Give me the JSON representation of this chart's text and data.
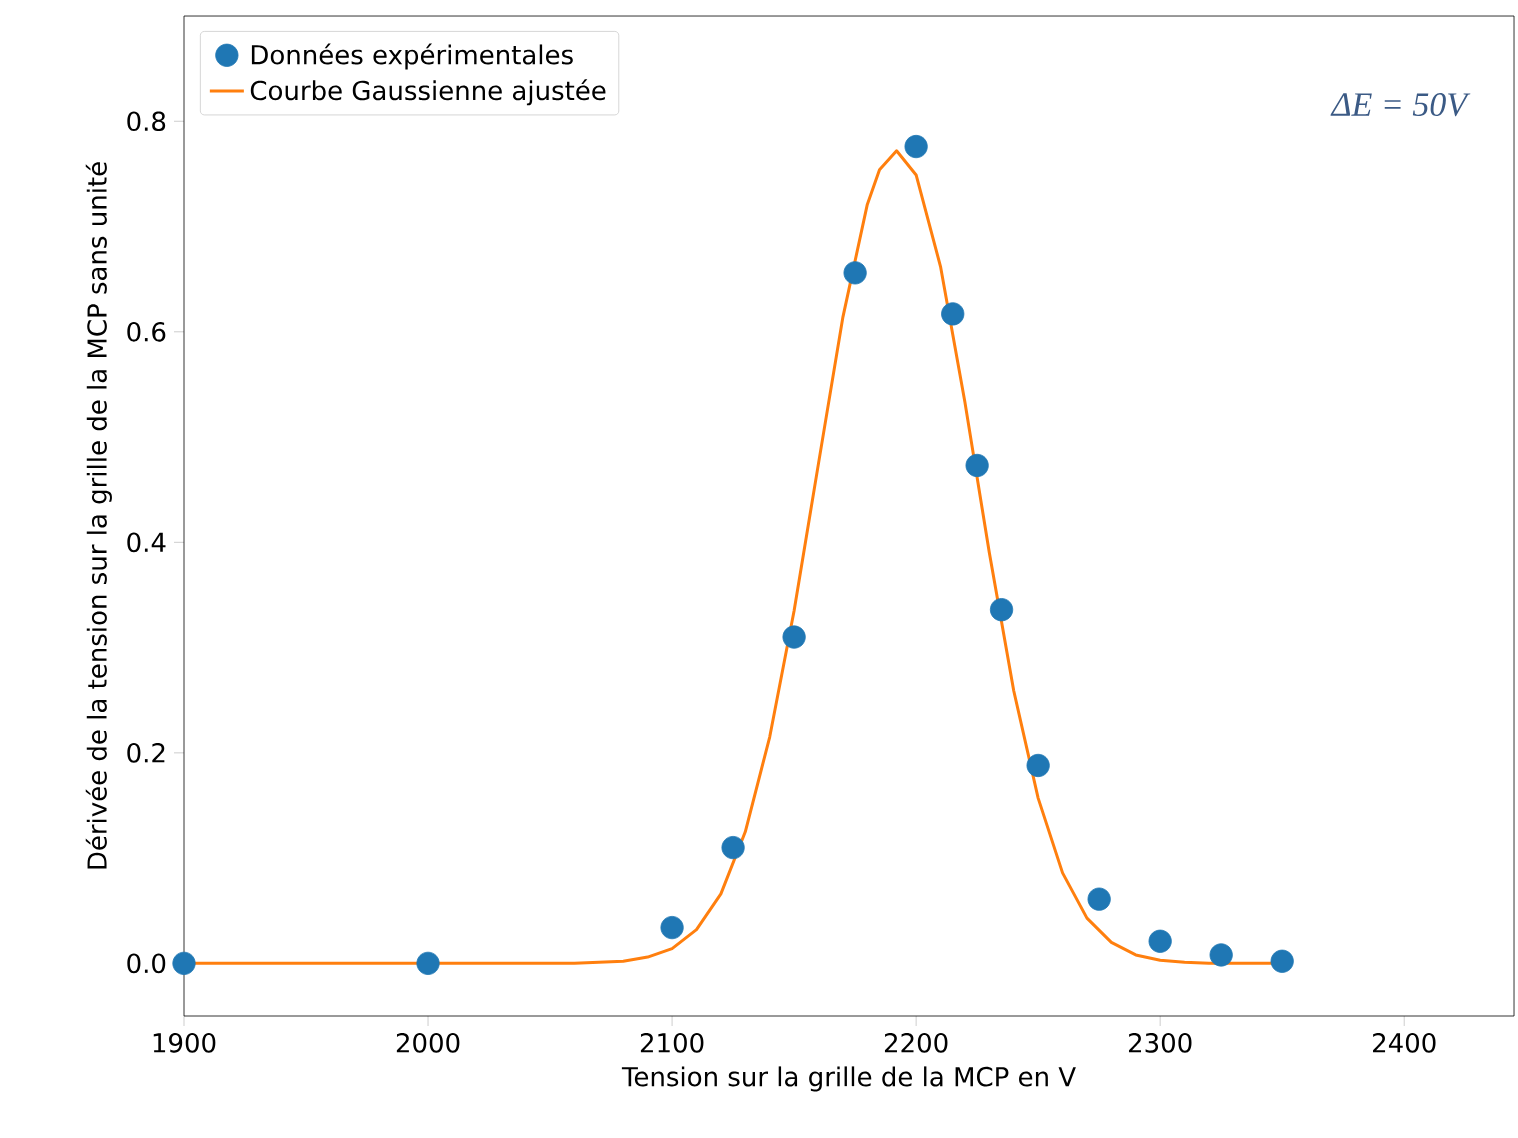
{
  "chart_data": {
    "type": "scatter",
    "xlabel": "Tension sur la grille de la MCP en V",
    "ylabel": "Dérivée de la tension sur la grille de la MCP sans unité",
    "xlim": [
      1900,
      2445
    ],
    "ylim": [
      -0.05,
      0.9
    ],
    "xticks": [
      1900,
      2000,
      2100,
      2200,
      2300,
      2400
    ],
    "yticks": [
      {
        "value": 0,
        "label": "0.0"
      },
      {
        "value": 0.2,
        "label": "0.2"
      },
      {
        "value": 0.4,
        "label": "0.4"
      },
      {
        "value": 0.6,
        "label": "0.6"
      },
      {
        "value": 0.8,
        "label": "0.8"
      }
    ],
    "legend": "top left",
    "annotations": [
      "ΔE = 50V"
    ],
    "series": [
      {
        "name": "Données expérimentales",
        "marker": "circle",
        "color": "#1f77b4",
        "x": [
          1900,
          2000,
          2100,
          2125,
          2150,
          2175,
          2200,
          2215,
          2225,
          2235,
          2250,
          2275,
          2300,
          2325,
          2350
        ],
        "values": [
          0.0,
          0.0,
          0.034,
          0.11,
          0.31,
          0.656,
          0.776,
          0.617,
          0.473,
          0.336,
          0.188,
          0.061,
          0.021,
          0.008,
          0.002
        ]
      },
      {
        "name": "Courbe Gaussienne ajustée",
        "type": "line",
        "marker": "none",
        "color": "#ff7f0e",
        "x": [
          1900,
          1950,
          2000,
          2040,
          2050,
          2060,
          2070,
          2080,
          2090,
          2100,
          2110,
          2120,
          2130,
          2140,
          2150,
          2160,
          2170,
          2180,
          2185,
          2192,
          2200,
          2210,
          2220,
          2230,
          2240,
          2250,
          2260,
          2270,
          2280,
          2290,
          2300,
          2310,
          2320,
          2330,
          2350
        ],
        "values": [
          0.0,
          0.0,
          0.0,
          0.0,
          0.0,
          0.0,
          0.001,
          0.002,
          0.006,
          0.014,
          0.032,
          0.066,
          0.125,
          0.215,
          0.335,
          0.475,
          0.614,
          0.721,
          0.754,
          0.772,
          0.749,
          0.662,
          0.533,
          0.39,
          0.259,
          0.157,
          0.086,
          0.043,
          0.02,
          0.008,
          0.003,
          0.001,
          0.0,
          0.0,
          0.0
        ]
      }
    ]
  }
}
